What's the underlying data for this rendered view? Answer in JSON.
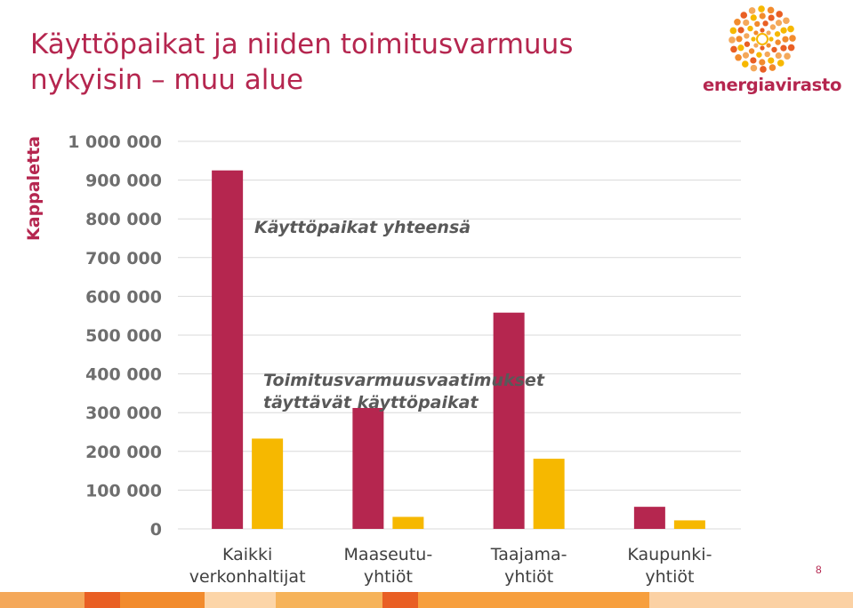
{
  "slide": {
    "title_line1": "Käyttöpaikat ja niiden toimitusvarmuus",
    "title_line2": "nykyisin – muu alue",
    "logo_text": "energiavirasto",
    "page_number": "8"
  },
  "colors": {
    "accent": "#b5264f",
    "series1": "#b5264f",
    "series2": "#f6b800",
    "grid": "#d9d9d9",
    "footer": [
      "#f4a85a",
      "#e95f24",
      "#f28b2d",
      "#fcd5a8",
      "#f6b35a",
      "#e95f24",
      "#f79f3e",
      "#fbd1a4"
    ]
  },
  "chart_data": {
    "type": "bar",
    "categories": [
      "Kaikki verkonhaltijat",
      "Maaseutu-yhtiöt",
      "Taajama-yhtiöt",
      "Kaupunki-yhtiöt"
    ],
    "category_lines": [
      [
        "Kaikki",
        "verkonhaltijat"
      ],
      [
        "Maaseutu-",
        "yhtiöt"
      ],
      [
        "Taajama-",
        "yhtiöt"
      ],
      [
        "Kaupunki-",
        "yhtiöt"
      ]
    ],
    "series": [
      {
        "name": "Käyttöpaikat yhteensä",
        "values": [
          925000,
          312000,
          558000,
          57000
        ]
      },
      {
        "name": "Toimitusvarmuusvaatimukset täyttävät käyttöpaikat",
        "name_lines": [
          "Toimitusvarmuusvaatimukset",
          "täyttävät käyttöpaikat"
        ],
        "values": [
          233000,
          31000,
          181000,
          22000
        ]
      }
    ],
    "ylabel": "Kappaletta",
    "ylim": [
      0,
      1000000
    ],
    "yticks": [
      0,
      100000,
      200000,
      300000,
      400000,
      500000,
      600000,
      700000,
      800000,
      900000,
      1000000
    ],
    "ytick_labels": [
      "0",
      "100 000",
      "200 000",
      "300 000",
      "400 000",
      "500 000",
      "600 000",
      "700 000",
      "800 000",
      "900 000",
      "1 000 000"
    ],
    "grid": true,
    "legend": "inline labels"
  }
}
